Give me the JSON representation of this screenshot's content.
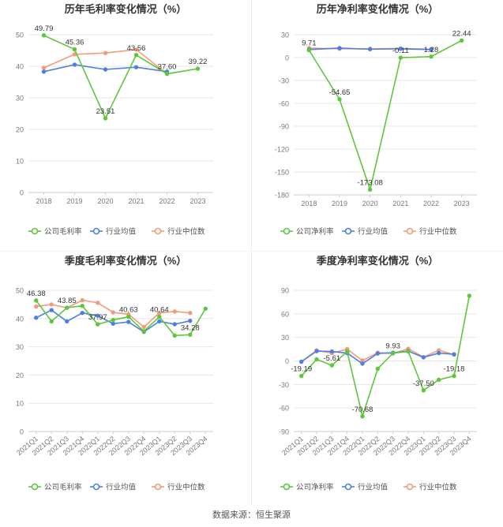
{
  "colors": {
    "company": "#5cc73a",
    "industry_avg": "#4f7fe0",
    "industry_median": "#f39a7a"
  },
  "footer": {
    "source": "数据来源：恒生聚源"
  },
  "chart_data": [
    {
      "id": "c1",
      "type": "line",
      "title": "历年毛利率变化情况（%）",
      "categories": [
        "2018",
        "2019",
        "2020",
        "2021",
        "2022",
        "2023"
      ],
      "ylim": [
        0,
        50
      ],
      "yticks": [
        0,
        10,
        20,
        30,
        40,
        50
      ],
      "rotate_x": false,
      "series": [
        {
          "name": "公司毛利率",
          "key": "company",
          "values": [
            49.79,
            45.36,
            23.51,
            43.56,
            37.6,
            39.22
          ]
        },
        {
          "name": "行业均值",
          "key": "industry_avg",
          "values": [
            38.3,
            40.5,
            39.0,
            39.7,
            38.3,
            null
          ]
        },
        {
          "name": "行业中位数",
          "key": "industry_median",
          "values": [
            39.5,
            43.8,
            44.2,
            45.3,
            37.6,
            null
          ]
        }
      ],
      "data_labels": [
        {
          "i": 0,
          "text": "49.79"
        },
        {
          "i": 1,
          "text": "45.36"
        },
        {
          "i": 2,
          "text": "23.51"
        },
        {
          "i": 3,
          "text": "43.56"
        },
        {
          "i": 4,
          "text": "37.60"
        },
        {
          "i": 5,
          "text": "39.22"
        }
      ]
    },
    {
      "id": "c2",
      "type": "line",
      "title": "历年净利率变化情况（%）",
      "categories": [
        "2018",
        "2019",
        "2020",
        "2021",
        "2022",
        "2023"
      ],
      "ylim": [
        -180,
        30
      ],
      "yticks": [
        -180,
        -150,
        -120,
        -90,
        -60,
        -30,
        0,
        30
      ],
      "rotate_x": false,
      "series": [
        {
          "name": "公司净利率",
          "key": "company",
          "values": [
            9.71,
            -54.65,
            -173.08,
            -0.11,
            1.28,
            22.44
          ]
        },
        {
          "name": "行业均值",
          "key": "industry_avg",
          "values": [
            10.5,
            12.5,
            11.0,
            11.5,
            10.5,
            null
          ]
        },
        {
          "name": "行业中位数",
          "key": "industry_median",
          "values": [
            12.5,
            11.5,
            11.5,
            12.0,
            11.0,
            null
          ]
        }
      ],
      "data_labels": [
        {
          "i": 0,
          "text": "9.71"
        },
        {
          "i": 1,
          "text": "-54.65"
        },
        {
          "i": 2,
          "text": "-173.08"
        },
        {
          "i": 3,
          "text": "-0.11"
        },
        {
          "i": 4,
          "text": "1.28"
        },
        {
          "i": 5,
          "text": "22.44"
        }
      ]
    },
    {
      "id": "c3",
      "type": "line",
      "title": "季度毛利率变化情况（%）",
      "categories": [
        "2021Q1",
        "2021Q2",
        "2021Q3",
        "2021Q4",
        "2022Q1",
        "2022Q2",
        "2022Q3",
        "2022Q4",
        "2023Q1",
        "2023Q2",
        "2023Q3",
        "2023Q4"
      ],
      "ylim": [
        0,
        50
      ],
      "yticks": [
        0,
        10,
        20,
        30,
        40,
        50
      ],
      "rotate_x": true,
      "series": [
        {
          "name": "公司毛利率",
          "key": "company",
          "values": [
            46.38,
            39.0,
            43.85,
            44.5,
            37.97,
            39.5,
            40.63,
            35.5,
            40.64,
            34.0,
            34.28,
            43.5
          ]
        },
        {
          "name": "行业均值",
          "key": "industry_avg",
          "values": [
            40.3,
            43.0,
            39.0,
            42.0,
            41.0,
            38.2,
            38.8,
            35.3,
            39.0,
            38.0,
            39.2,
            null
          ]
        },
        {
          "name": "行业中位数",
          "key": "industry_median",
          "values": [
            44.3,
            45.0,
            43.8,
            46.5,
            45.6,
            42.2,
            41.5,
            37.0,
            42.0,
            42.5,
            42.0,
            null
          ]
        }
      ],
      "data_labels": [
        {
          "i": 0,
          "text": "46.38"
        },
        {
          "i": 2,
          "text": "43.85"
        },
        {
          "i": 4,
          "text": "37.97"
        },
        {
          "i": 6,
          "text": "40.63"
        },
        {
          "i": 8,
          "text": "40.64"
        },
        {
          "i": 10,
          "text": "34.28"
        }
      ]
    },
    {
      "id": "c4",
      "type": "line",
      "title": "季度净利率变化情况（%）",
      "categories": [
        "2021Q1",
        "2021Q2",
        "2021Q3",
        "2021Q4",
        "2022Q1",
        "2022Q2",
        "2022Q3",
        "2022Q4",
        "2023Q1",
        "2023Q2",
        "2023Q3",
        "2023Q4"
      ],
      "ylim": [
        -90,
        90
      ],
      "yticks": [
        -90,
        -60,
        -30,
        0,
        30,
        60,
        90
      ],
      "rotate_x": true,
      "series": [
        {
          "name": "公司净利率",
          "key": "company",
          "values": [
            -19.19,
            2.0,
            -5.61,
            12.0,
            -70.68,
            -10.0,
            9.93,
            12.0,
            -37.5,
            -24.0,
            -19.18,
            83.0
          ]
        },
        {
          "name": "行业均值",
          "key": "industry_avg",
          "values": [
            -1.0,
            12.5,
            12.0,
            10.0,
            -3.5,
            9.5,
            10.5,
            12.5,
            4.5,
            10.0,
            8.5,
            null
          ]
        },
        {
          "name": "行业中位数",
          "key": "industry_median",
          "values": [
            -1.0,
            13.5,
            10.0,
            15.0,
            0.5,
            10.5,
            9.5,
            15.5,
            5.0,
            13.5,
            8.0,
            null
          ]
        }
      ],
      "data_labels": [
        {
          "i": 0,
          "text": "-19.19"
        },
        {
          "i": 2,
          "text": "-5.61"
        },
        {
          "i": 4,
          "text": "-70.68"
        },
        {
          "i": 6,
          "text": "9.93"
        },
        {
          "i": 8,
          "text": "-37.50"
        },
        {
          "i": 10,
          "text": "-19.18"
        }
      ]
    }
  ]
}
